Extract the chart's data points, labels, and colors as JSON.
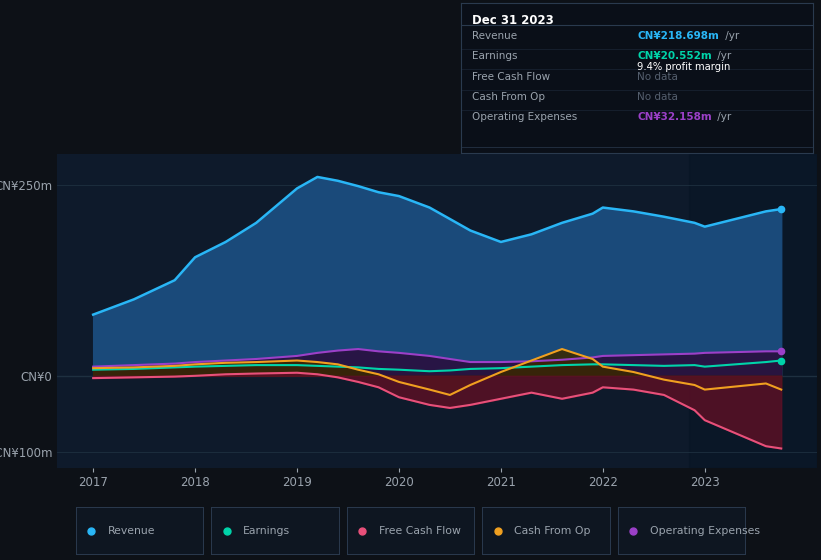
{
  "bg_color": "#0d1117",
  "chart_bg": "#0e1a2b",
  "grid_color": "#1e3040",
  "text_color": "#9aa3ad",
  "title_color": "#ffffff",
  "years": [
    2017.0,
    2017.4,
    2017.8,
    2018.0,
    2018.3,
    2018.6,
    2019.0,
    2019.2,
    2019.4,
    2019.6,
    2019.8,
    2020.0,
    2020.3,
    2020.5,
    2020.7,
    2021.0,
    2021.3,
    2021.6,
    2021.9,
    2022.0,
    2022.3,
    2022.6,
    2022.9,
    2023.0,
    2023.3,
    2023.6,
    2023.75
  ],
  "revenue": [
    80,
    100,
    125,
    155,
    175,
    200,
    245,
    260,
    255,
    248,
    240,
    235,
    220,
    205,
    190,
    175,
    185,
    200,
    212,
    220,
    215,
    208,
    200,
    195,
    205,
    215,
    218
  ],
  "earnings": [
    8,
    9,
    11,
    12,
    13,
    14,
    14,
    13,
    12,
    11,
    9,
    8,
    6,
    7,
    9,
    10,
    12,
    14,
    15,
    15,
    14,
    13,
    14,
    12,
    15,
    18,
    20
  ],
  "free_cash_flow": [
    -3,
    -2,
    -1,
    0,
    2,
    3,
    4,
    2,
    -2,
    -8,
    -15,
    -28,
    -38,
    -42,
    -38,
    -30,
    -22,
    -30,
    -22,
    -15,
    -18,
    -25,
    -45,
    -58,
    -75,
    -92,
    -95
  ],
  "cash_from_op": [
    10,
    11,
    13,
    15,
    17,
    18,
    20,
    18,
    15,
    8,
    2,
    -8,
    -18,
    -25,
    -12,
    5,
    20,
    35,
    22,
    12,
    5,
    -5,
    -12,
    -18,
    -14,
    -10,
    -18
  ],
  "operating_expenses": [
    12,
    14,
    16,
    18,
    20,
    22,
    26,
    30,
    33,
    35,
    32,
    30,
    26,
    22,
    18,
    18,
    19,
    21,
    24,
    26,
    27,
    28,
    29,
    30,
    31,
    32,
    32
  ],
  "revenue_color": "#29b6f6",
  "revenue_fill": "#1a4a7a",
  "earnings_color": "#00d4aa",
  "earnings_fill": "#1a4035",
  "free_cash_flow_color": "#e8507a",
  "free_cash_flow_fill": "#5a1025",
  "cash_from_op_color": "#f0a020",
  "cash_from_op_fill": "#3a2800",
  "operating_expenses_color": "#9b40c8",
  "operating_expenses_fill": "#2a1040",
  "ylim": [
    -120,
    290
  ],
  "yticks": [
    250,
    0,
    -100
  ],
  "ytick_labels": [
    "CN¥250m",
    "CN¥0",
    "-CN¥100m"
  ],
  "xticks": [
    2017,
    2018,
    2019,
    2020,
    2021,
    2022,
    2023
  ],
  "tooltip_date": "Dec 31 2023",
  "tooltip_revenue_val": "CN¥218.698m",
  "tooltip_earnings_val": "CN¥20.552m",
  "tooltip_margin": "9.4%",
  "tooltip_opex_val": "CN¥32.158m",
  "legend_items": [
    {
      "label": "Revenue",
      "color": "#29b6f6"
    },
    {
      "label": "Earnings",
      "color": "#00d4aa"
    },
    {
      "label": "Free Cash Flow",
      "color": "#e8507a"
    },
    {
      "label": "Cash From Op",
      "color": "#f0a020"
    },
    {
      "label": "Operating Expenses",
      "color": "#9b40c8"
    }
  ]
}
